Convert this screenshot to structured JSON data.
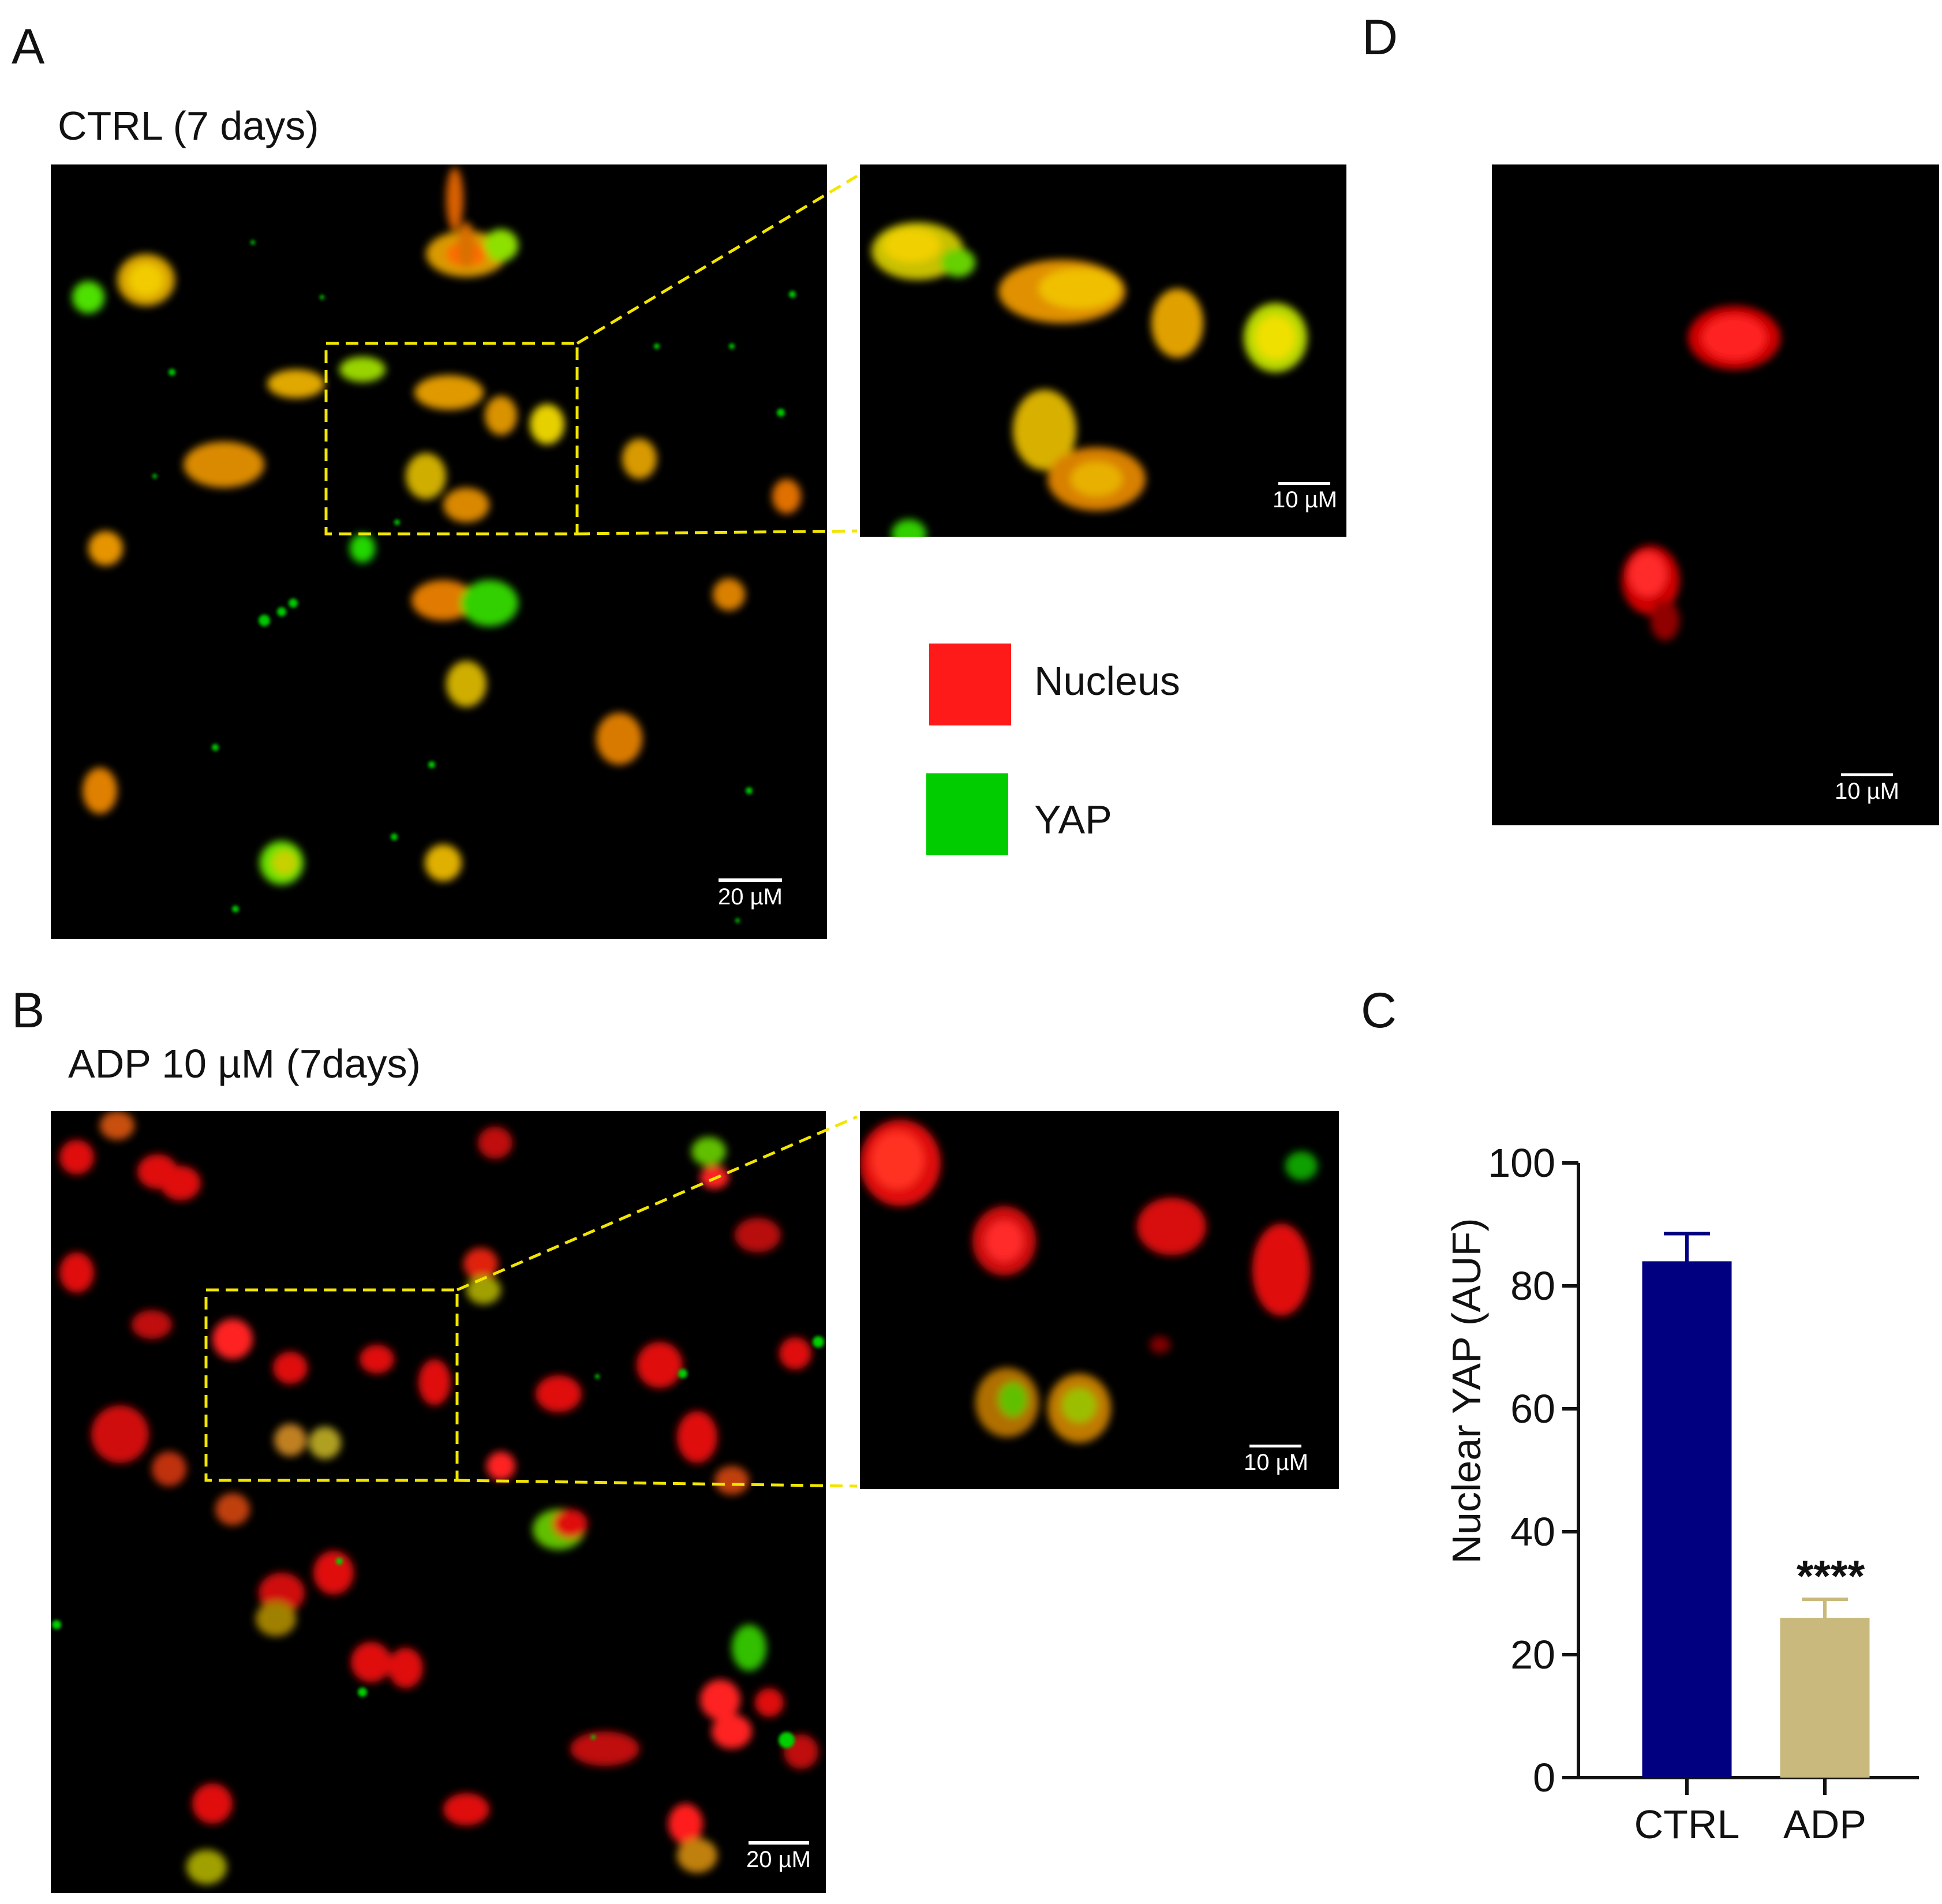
{
  "panels": {
    "a": {
      "letter": "A",
      "condition": "CTRL (7 days)",
      "scale_main": "20 µM",
      "scale_inset": "10 µM"
    },
    "b": {
      "letter": "B",
      "condition": "ADP 10 µM (7days)",
      "scale_main": "20 µM",
      "scale_inset": "10 µM"
    },
    "c": {
      "letter": "C"
    },
    "d": {
      "letter": "D",
      "scale": "10 µM"
    }
  },
  "legend": {
    "items": [
      {
        "label": "Nucleus",
        "color": "#ff1a1a"
      },
      {
        "label": "YAP",
        "color": "#00cc00"
      }
    ]
  },
  "colors": {
    "nucleus": "#ff1a1a",
    "yap": "#00cc00",
    "merge": "#e6b800",
    "roi_box": "#f2e600",
    "ctrl_bar": "#000080",
    "adp_bar": "#c9b97d"
  },
  "chart_data": {
    "type": "bar",
    "categories": [
      "CTRL",
      "ADP"
    ],
    "values": [
      84,
      26
    ],
    "errors": [
      4.5,
      3
    ],
    "significance": [
      "",
      "****"
    ],
    "ylabel": "Nuclear YAP (AUF)",
    "xlabel": "",
    "ylim": [
      0,
      100
    ],
    "yticks": [
      0,
      20,
      40,
      60,
      80,
      100
    ],
    "bar_colors": [
      "#000080",
      "#c9b97d"
    ],
    "grid": false
  }
}
